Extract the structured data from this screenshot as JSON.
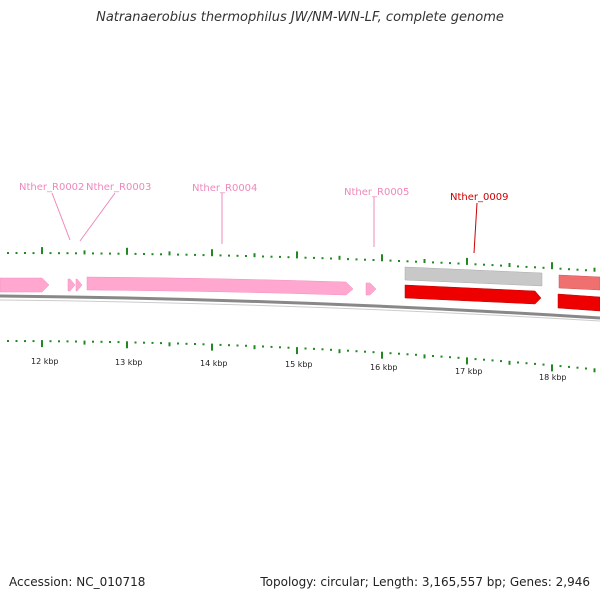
{
  "page": {
    "title": "Natranaerobius thermophilus JW/NM-WN-LF, complete genome"
  },
  "footer": {
    "accession": "Accession: NC_010718",
    "summary": "Topology: circular; Length: 3,165,557 bp; Genes: 2,946"
  },
  "colors": {
    "pseudo_fill": "#ffa7cf",
    "pseudo_label": "#ee88bb",
    "cds_fill": "#ee0000",
    "cds_label": "#cc0000",
    "cds_shadow": "#bbbbbb",
    "salmon_fill": "#f07070",
    "tick": "#228822",
    "backbone": "#888888"
  },
  "scale": {
    "labels": [
      "12 kbp",
      "13 kbp",
      "14 kbp",
      "15 kbp",
      "16 kbp",
      "17 kbp",
      "18 kbp"
    ]
  },
  "genes": [
    {
      "id": "Nther_R0002",
      "label": "Nther_R0002",
      "kind": "pseudo"
    },
    {
      "id": "Nther_R0003",
      "label": "Nther_R0003",
      "kind": "pseudo"
    },
    {
      "id": "Nther_R0004",
      "label": "Nther_R0004",
      "kind": "pseudo"
    },
    {
      "id": "Nther_R0005",
      "label": "Nther_R0005",
      "kind": "pseudo"
    },
    {
      "id": "Nther_0009",
      "label": "Nther_0009",
      "kind": "cds"
    }
  ],
  "icons": {
    "feature_arrow": "arrow-right-icon"
  }
}
